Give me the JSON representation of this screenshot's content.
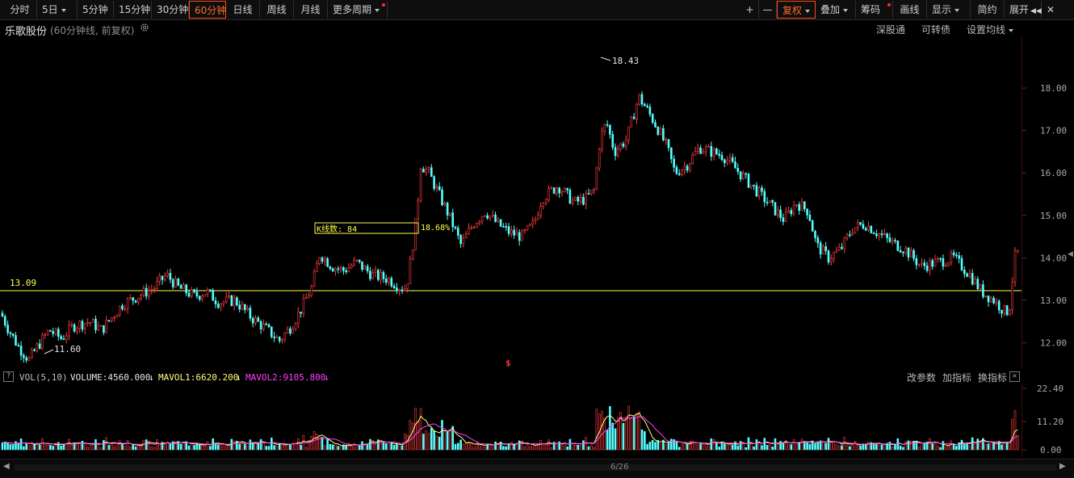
{
  "toolbar": {
    "periods": [
      "分时",
      "5日",
      "5分钟",
      "15分钟",
      "30分钟",
      "60分钟",
      "日线",
      "周线",
      "月线",
      "更多周期"
    ],
    "active_period": "60分钟",
    "right_buttons": [
      "+",
      "—",
      "复权",
      "叠加",
      "筹码",
      "画线",
      "显示",
      "简约",
      "展开"
    ],
    "active_right": "复权",
    "expand_icon": "double-chevron-left-icon",
    "close_icon": "close-icon"
  },
  "info": {
    "stock_name": "乐歌股份",
    "chart_desc": "(60分钟线, 前复权)",
    "gear_icon": "gear-icon",
    "links": [
      "深股通",
      "可转债",
      "设置均线"
    ]
  },
  "main": {
    "h_line_value": "13.09",
    "max_label": "18.43",
    "min_label": "11.60",
    "selection_box_text": "K线数: 84",
    "selection_pct": "18.68%",
    "dollar_marker": "$"
  },
  "price_axis": [
    "18.00",
    "17.00",
    "16.00",
    "15.00",
    "14.00",
    "13.00",
    "12.00"
  ],
  "vol": {
    "help": "?",
    "name": "VOL(5,10)",
    "volume": "VOLUME:4560.000",
    "mavol1": "MAVOL1:6620.200",
    "mavol2": "MAVOL2:9105.800",
    "links": [
      "改参数",
      "加指标",
      "换指标"
    ],
    "axis": [
      "22.40",
      "11.20",
      "0.00"
    ]
  },
  "scroll": {
    "page": "6/26"
  },
  "colors": {
    "up": "#ff3c3c",
    "down": "#54ffff",
    "line": "#ffff4a",
    "mavol1": "#ffff80",
    "mavol2": "#ff40ff",
    "active": "#ff6a2a"
  },
  "chart_data": {
    "type": "candlestick",
    "y_range": [
      11.4,
      19.2
    ],
    "keypoints": [
      [
        0,
        12.7
      ],
      [
        10,
        12.3
      ],
      [
        22,
        11.9
      ],
      [
        35,
        11.6
      ],
      [
        45,
        11.9
      ],
      [
        60,
        12.3
      ],
      [
        75,
        12.1
      ],
      [
        90,
        12.4
      ],
      [
        110,
        12.5
      ],
      [
        125,
        12.3
      ],
      [
        150,
        12.9
      ],
      [
        170,
        13.1
      ],
      [
        190,
        13.3
      ],
      [
        205,
        13.6
      ],
      [
        220,
        13.3
      ],
      [
        240,
        13.1
      ],
      [
        255,
        13.2
      ],
      [
        270,
        12.95
      ],
      [
        290,
        13.0
      ],
      [
        310,
        12.6
      ],
      [
        330,
        12.3
      ],
      [
        345,
        12.05
      ],
      [
        360,
        12.4
      ],
      [
        372,
        12.8
      ],
      [
        385,
        13.3
      ],
      [
        395,
        14.1
      ],
      [
        410,
        13.8
      ],
      [
        425,
        13.7
      ],
      [
        440,
        13.9
      ],
      [
        460,
        13.6
      ],
      [
        480,
        13.5
      ],
      [
        495,
        13.3
      ],
      [
        502,
        13.3
      ],
      [
        508,
        14.0
      ],
      [
        515,
        15.0
      ],
      [
        520,
        16.2
      ],
      [
        530,
        16.0
      ],
      [
        540,
        15.6
      ],
      [
        555,
        15.0
      ],
      [
        570,
        14.3
      ],
      [
        585,
        14.8
      ],
      [
        600,
        15.1
      ],
      [
        615,
        14.8
      ],
      [
        630,
        14.6
      ],
      [
        645,
        14.5
      ],
      [
        660,
        14.8
      ],
      [
        670,
        15.4
      ],
      [
        690,
        15.7
      ],
      [
        710,
        15.3
      ],
      [
        725,
        15.4
      ],
      [
        735,
        15.6
      ],
      [
        742,
        16.8
      ],
      [
        750,
        17.2
      ],
      [
        760,
        16.5
      ],
      [
        775,
        16.8
      ],
      [
        790,
        17.8
      ],
      [
        800,
        17.5
      ],
      [
        815,
        17.0
      ],
      [
        825,
        16.6
      ],
      [
        835,
        16.0
      ],
      [
        850,
        16.2
      ],
      [
        865,
        16.6
      ],
      [
        880,
        16.5
      ],
      [
        895,
        16.4
      ],
      [
        915,
        16.0
      ],
      [
        935,
        15.6
      ],
      [
        955,
        15.2
      ],
      [
        970,
        14.9
      ],
      [
        985,
        15.3
      ],
      [
        1000,
        15.1
      ],
      [
        1010,
        14.3
      ],
      [
        1025,
        14.0
      ],
      [
        1040,
        14.2
      ],
      [
        1055,
        14.7
      ],
      [
        1070,
        14.8
      ],
      [
        1085,
        14.6
      ],
      [
        1100,
        14.4
      ],
      [
        1120,
        14.2
      ],
      [
        1140,
        13.8
      ],
      [
        1160,
        13.9
      ],
      [
        1180,
        14.0
      ],
      [
        1200,
        13.6
      ],
      [
        1215,
        13.2
      ],
      [
        1230,
        13.0
      ],
      [
        1245,
        12.7
      ],
      [
        1250,
        12.9
      ],
      [
        1255,
        14.0
      ],
      [
        1262,
        14.2
      ]
    ]
  }
}
